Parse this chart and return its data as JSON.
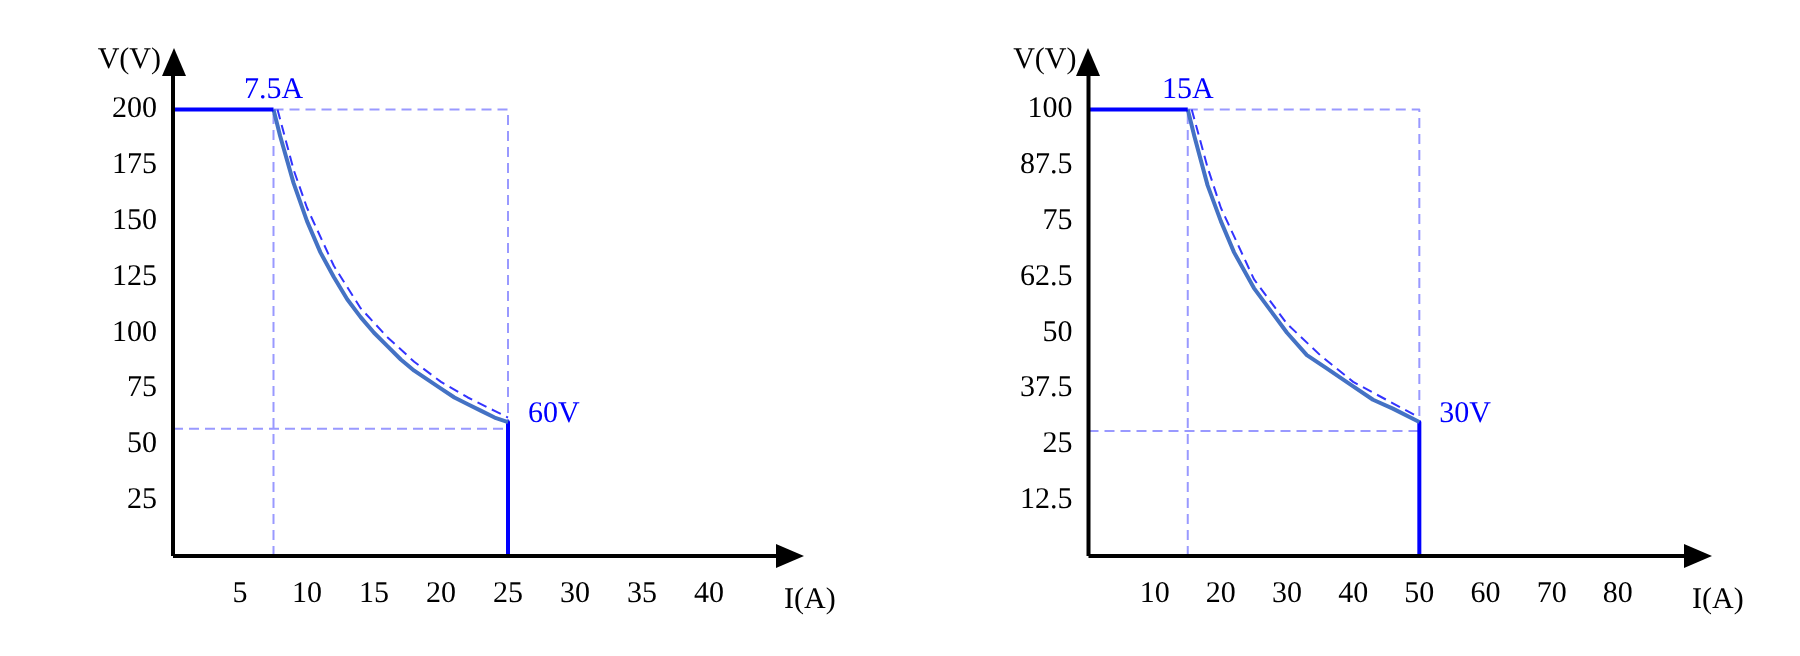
{
  "chart_data": [
    {
      "type": "line",
      "xlabel": "I(A)",
      "ylabel": "V(V)",
      "xlim": [
        0,
        45
      ],
      "ylim": [
        0,
        215
      ],
      "xticks": [
        5,
        10,
        15,
        20,
        25,
        30,
        35,
        40
      ],
      "yticks": [
        25,
        50,
        75,
        100,
        125,
        150,
        175,
        200
      ],
      "series": [
        {
          "color": "#0000ff",
          "line_style": "solid",
          "x": [
            0,
            7.5
          ],
          "values": [
            200,
            200
          ]
        },
        {
          "color": "#4472c4",
          "line_style": "solid",
          "x": [
            7.5,
            8,
            9,
            10,
            11,
            12,
            13,
            14,
            15,
            16,
            17,
            18,
            19,
            20,
            21,
            22,
            23,
            24,
            25
          ],
          "values": [
            200,
            188,
            167,
            150,
            136,
            125,
            115,
            107,
            100,
            94,
            88,
            83,
            79,
            75,
            71,
            68,
            65,
            62,
            60
          ]
        },
        {
          "color": "#0000ff",
          "line_style": "solid",
          "x": [
            25,
            25
          ],
          "values": [
            60,
            0
          ]
        },
        {
          "color": "#3333ff",
          "line_style": "dashed",
          "x": [
            7.8,
            9,
            10,
            12,
            14,
            16,
            18,
            20,
            22,
            24,
            25
          ],
          "values": [
            200,
            173,
            156,
            130,
            111,
            98,
            87,
            78,
            71,
            65,
            62
          ]
        },
        {
          "color": "#9999ff",
          "line_style": "dashed",
          "x": [
            7.5,
            7.5
          ],
          "values": [
            0,
            200
          ]
        },
        {
          "color": "#9999ff",
          "line_style": "dashed",
          "x": [
            7.5,
            25,
            25
          ],
          "values": [
            200,
            200,
            60
          ]
        },
        {
          "color": "#9999ff",
          "line_style": "dashed",
          "x": [
            0,
            25
          ],
          "values": [
            57,
            57
          ]
        }
      ],
      "annotations": [
        {
          "text": "7.5A",
          "x": 7.5,
          "y": 200
        },
        {
          "text": "60V",
          "x": 25,
          "y": 60
        }
      ]
    },
    {
      "type": "line",
      "xlabel": "I(A)",
      "ylabel": "V(V)",
      "xlim": [
        0,
        90
      ],
      "ylim": [
        0,
        107.5
      ],
      "xticks": [
        10,
        20,
        30,
        40,
        50,
        60,
        70,
        80
      ],
      "yticks": [
        12.5,
        25,
        37.5,
        50,
        62.5,
        75,
        87.5,
        100
      ],
      "series": [
        {
          "color": "#0000ff",
          "line_style": "solid",
          "x": [
            0,
            15
          ],
          "values": [
            100,
            100
          ]
        },
        {
          "color": "#4472c4",
          "line_style": "solid",
          "x": [
            15,
            16,
            18,
            20,
            22,
            25,
            28,
            30,
            33,
            36,
            40,
            43,
            46,
            50
          ],
          "values": [
            100,
            94,
            83,
            75,
            68,
            60,
            54,
            50,
            45,
            42,
            38,
            35,
            33,
            30
          ]
        },
        {
          "color": "#0000ff",
          "line_style": "solid",
          "x": [
            50,
            50
          ],
          "values": [
            30,
            0
          ]
        },
        {
          "color": "#3333ff",
          "line_style": "dashed",
          "x": [
            15.6,
            18,
            20,
            25,
            30,
            35,
            40,
            45,
            50
          ],
          "values": [
            100,
            87,
            78,
            62,
            52,
            45,
            39,
            35,
            31
          ]
        },
        {
          "color": "#9999ff",
          "line_style": "dashed",
          "x": [
            15,
            15
          ],
          "values": [
            0,
            100
          ]
        },
        {
          "color": "#9999ff",
          "line_style": "dashed",
          "x": [
            15,
            50,
            50
          ],
          "values": [
            100,
            100,
            30
          ]
        },
        {
          "color": "#9999ff",
          "line_style": "dashed",
          "x": [
            0,
            50
          ],
          "values": [
            28,
            28
          ]
        }
      ],
      "annotations": [
        {
          "text": "15A",
          "x": 15,
          "y": 100
        },
        {
          "text": "30V",
          "x": 50,
          "y": 30
        }
      ]
    }
  ]
}
